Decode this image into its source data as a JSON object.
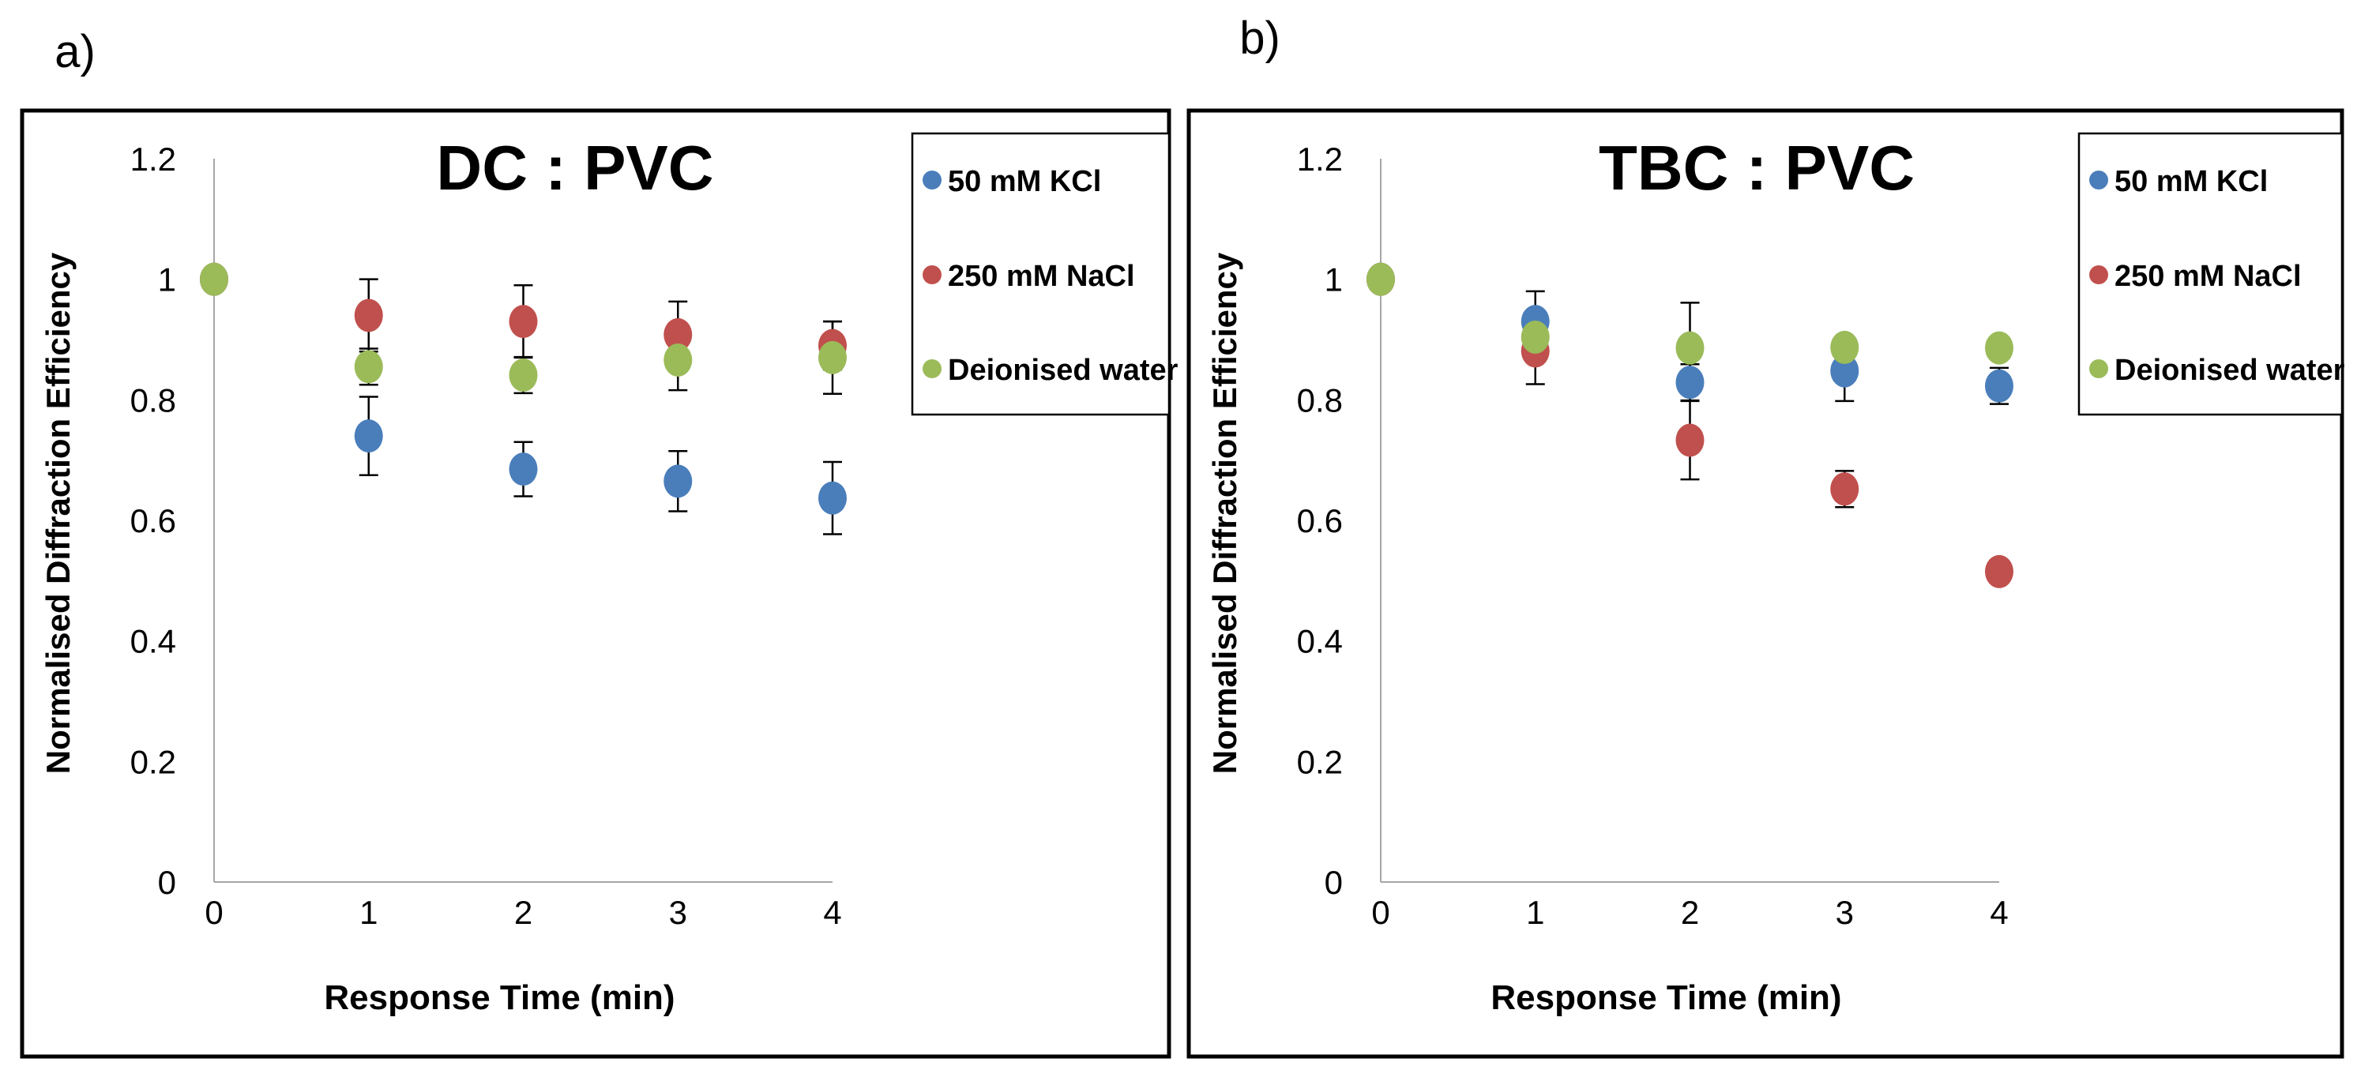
{
  "colors": {
    "blue": "#4a7ebb",
    "red": "#c0504d",
    "green": "#9bbb59"
  },
  "chart_data": [
    {
      "panel_label": "a)",
      "type": "scatter",
      "title": "DC : PVC",
      "xlabel": "Response Time (min)",
      "ylabel": "Normalised Diffraction Efficiency",
      "xlim": [
        0,
        4
      ],
      "ylim": [
        0,
        1.2
      ],
      "xticks": [
        "0",
        "1",
        "2",
        "3",
        "4"
      ],
      "yticks": [
        "0",
        "0.2",
        "0.4",
        "0.6",
        "0.8",
        "1",
        "1.2"
      ],
      "grid": false,
      "legend_position": "top-right",
      "x": [
        0,
        1,
        2,
        3,
        4
      ],
      "series": [
        {
          "name": "50 mM KCl",
          "color": "#4a7ebb",
          "values": [
            1.0,
            0.74,
            0.685,
            0.665,
            0.637
          ],
          "errors": [
            0,
            0.065,
            0.045,
            0.05,
            0.06
          ]
        },
        {
          "name": "250 mM NaCl",
          "color": "#c0504d",
          "values": [
            1.0,
            0.94,
            0.93,
            0.908,
            0.89
          ],
          "errors": [
            0,
            0.06,
            0.06,
            0.055,
            0.04
          ]
        },
        {
          "name": "Deionised water",
          "color": "#9bbb59",
          "values": [
            1.0,
            0.855,
            0.841,
            0.866,
            0.87
          ],
          "errors": [
            0,
            0.03,
            0.03,
            0.05,
            0.06
          ]
        }
      ]
    },
    {
      "panel_label": "b)",
      "type": "scatter",
      "title": "TBC : PVC",
      "xlabel": "Response Time (min)",
      "ylabel": "Normalised Diffraction Efficiency",
      "xlim": [
        0,
        4
      ],
      "ylim": [
        0,
        1.2
      ],
      "xticks": [
        "0",
        "1",
        "2",
        "3",
        "4"
      ],
      "yticks": [
        "0",
        "0.2",
        "0.4",
        "0.6",
        "0.8",
        "1",
        "1.2"
      ],
      "grid": false,
      "legend_position": "top-right",
      "x": [
        0,
        1,
        2,
        3,
        4
      ],
      "series": [
        {
          "name": "50 mM KCl",
          "color": "#4a7ebb",
          "values": [
            1.0,
            0.93,
            0.829,
            0.848,
            0.823
          ],
          "errors": [
            0,
            0.05,
            0.03,
            0.05,
            0.03
          ]
        },
        {
          "name": "250 mM NaCl",
          "color": "#c0504d",
          "values": [
            1.0,
            0.881,
            0.733,
            0.652,
            0.515
          ],
          "errors": [
            0,
            0.055,
            0.065,
            0.03,
            0
          ]
        },
        {
          "name": "Deionised water",
          "color": "#9bbb59",
          "values": [
            1.0,
            0.904,
            0.886,
            0.887,
            0.886
          ],
          "errors": [
            0,
            0,
            0.075,
            0,
            0
          ]
        }
      ]
    }
  ]
}
